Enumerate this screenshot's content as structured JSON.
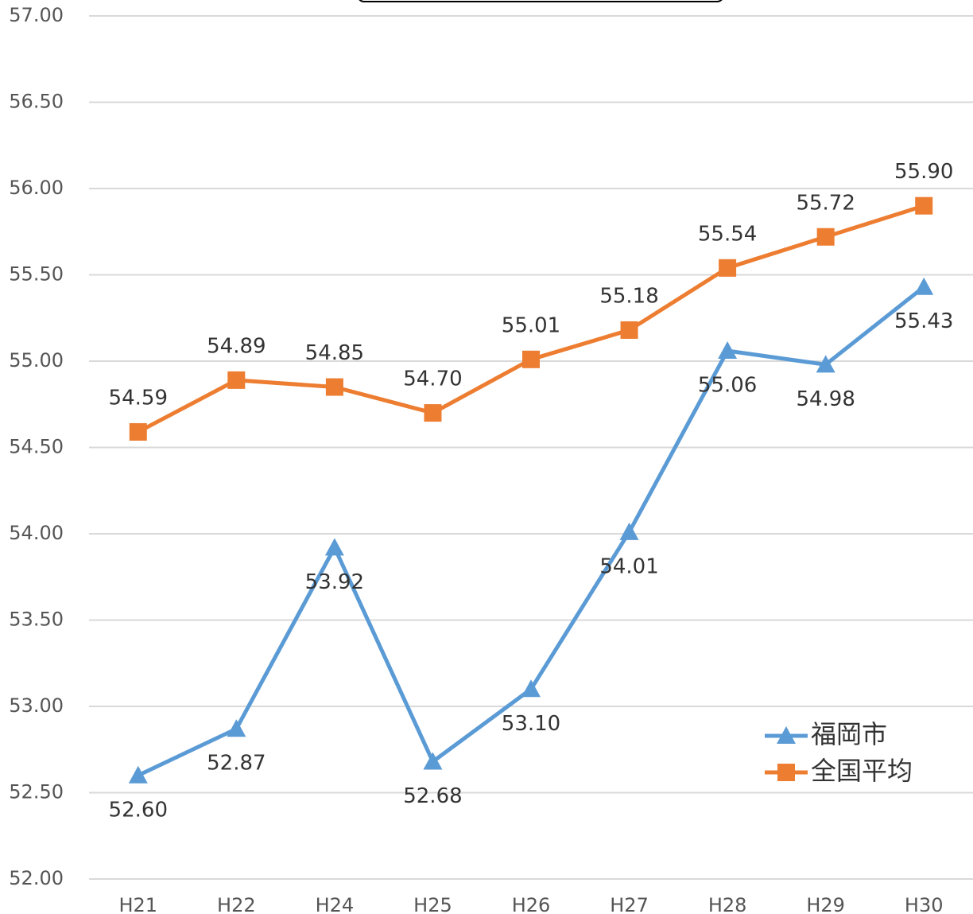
{
  "chart_data": {
    "type": "line",
    "categories": [
      "H21",
      "H22",
      "H24",
      "H25",
      "H26",
      "H27",
      "H28",
      "H29",
      "H30"
    ],
    "series": [
      {
        "name": "福岡市",
        "color": "#5b9bd5",
        "marker": "triangle",
        "values": [
          52.6,
          52.87,
          53.92,
          52.68,
          53.1,
          54.01,
          55.06,
          54.98,
          55.43
        ],
        "value_labels": [
          "52.60",
          "52.87",
          "53.92",
          "52.68",
          "53.10",
          "54.01",
          "55.06",
          "54.98",
          "55.43"
        ]
      },
      {
        "name": "全国平均",
        "color": "#ed7d31",
        "marker": "square",
        "values": [
          54.59,
          54.89,
          54.85,
          54.7,
          55.01,
          55.18,
          55.54,
          55.72,
          55.9
        ],
        "value_labels": [
          "54.59",
          "54.89",
          "54.85",
          "54.70",
          "55.01",
          "55.18",
          "55.54",
          "55.72",
          "55.90"
        ]
      }
    ],
    "ylim": [
      52,
      57
    ],
    "yticks": [
      {
        "value": 52,
        "label": "52.00"
      },
      {
        "value": 52.5,
        "label": "52.50"
      },
      {
        "value": 53,
        "label": "53.00"
      },
      {
        "value": 53.5,
        "label": "53.50"
      },
      {
        "value": 54,
        "label": "54.00"
      },
      {
        "value": 54.5,
        "label": "54.50"
      },
      {
        "value": 55,
        "label": "55.00"
      },
      {
        "value": 55.5,
        "label": "55.50"
      },
      {
        "value": 56,
        "label": "56.00"
      },
      {
        "value": 56.5,
        "label": "56.50"
      },
      {
        "value": 57,
        "label": "57.00"
      }
    ],
    "grid": true,
    "legend": "lower right"
  }
}
